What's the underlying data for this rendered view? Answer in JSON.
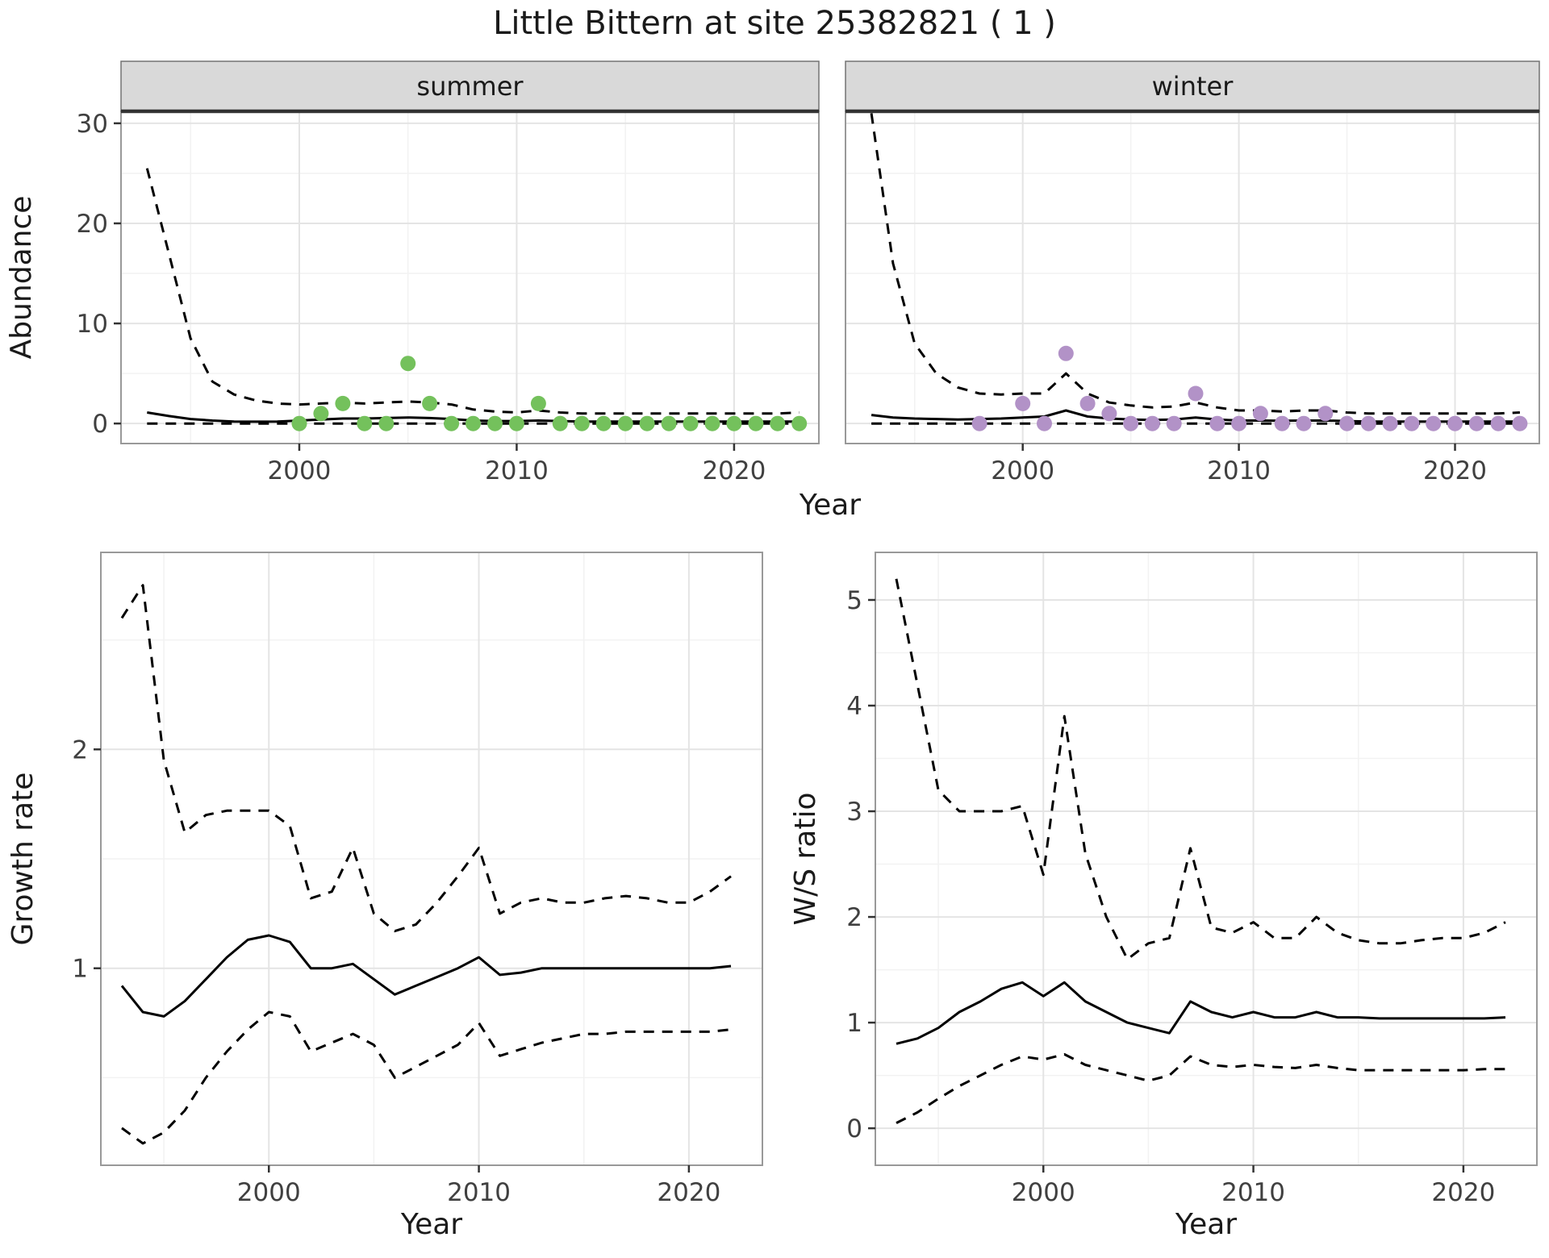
{
  "title": "Little Bittern at site 25382821 ( 1 )",
  "chart_data": [
    {
      "id": "abundance-summer",
      "type": "line+scatter",
      "facet_label": "summer",
      "xlabel": "Year",
      "ylabel": "Abundance",
      "xlim": [
        1991.8,
        2023.9
      ],
      "ylim": [
        -2.0,
        31.2
      ],
      "xticks": [
        2000,
        2010,
        2020
      ],
      "yticks": [
        0,
        10,
        20,
        30
      ],
      "grid": "on",
      "point_color": "#74C15C",
      "points": {
        "x": [
          2000,
          2001,
          2002,
          2003,
          2004,
          2005,
          2006,
          2007,
          2008,
          2009,
          2010,
          2011,
          2012,
          2013,
          2014,
          2015,
          2016,
          2017,
          2018,
          2019,
          2020,
          2021,
          2022,
          2023
        ],
        "y": [
          0,
          1,
          2,
          0,
          0,
          6,
          2,
          0,
          0,
          0,
          0,
          2,
          0,
          0,
          0,
          0,
          0,
          0,
          0,
          0,
          0,
          0,
          0,
          0
        ]
      },
      "series": [
        {
          "name": "fitted",
          "style": "solid",
          "x": [
            1993,
            1994,
            1995,
            1996,
            1997,
            1998,
            1999,
            2000,
            2001,
            2002,
            2003,
            2004,
            2005,
            2006,
            2007,
            2008,
            2009,
            2010,
            2011,
            2012,
            2013,
            2014,
            2015,
            2016,
            2017,
            2018,
            2019,
            2020,
            2021,
            2022,
            2023
          ],
          "y": [
            1.1,
            0.75,
            0.45,
            0.3,
            0.2,
            0.18,
            0.2,
            0.3,
            0.4,
            0.5,
            0.5,
            0.55,
            0.6,
            0.55,
            0.45,
            0.3,
            0.25,
            0.25,
            0.3,
            0.25,
            0.2,
            0.2,
            0.2,
            0.2,
            0.2,
            0.2,
            0.2,
            0.2,
            0.2,
            0.2,
            0.2
          ]
        },
        {
          "name": "upper-ci",
          "style": "dashed",
          "x": [
            1993,
            1994,
            1995,
            1996,
            1997,
            1998,
            1999,
            2000,
            2001,
            2002,
            2003,
            2004,
            2005,
            2006,
            2007,
            2008,
            2009,
            2010,
            2011,
            2012,
            2013,
            2014,
            2015,
            2016,
            2017,
            2018,
            2019,
            2020,
            2021,
            2022,
            2023
          ],
          "y": [
            25.5,
            17,
            8.5,
            4.2,
            2.9,
            2.3,
            2.0,
            1.9,
            2.0,
            2.1,
            2.0,
            2.1,
            2.2,
            2.1,
            1.9,
            1.4,
            1.2,
            1.1,
            1.3,
            1.1,
            1.0,
            1.0,
            1.0,
            1.0,
            1.0,
            1.0,
            1.0,
            1.0,
            1.0,
            1.0,
            1.1
          ]
        },
        {
          "name": "lower-ci",
          "style": "dashed",
          "x": [
            1993,
            1994,
            1995,
            1996,
            1997,
            1998,
            1999,
            2000,
            2001,
            2002,
            2003,
            2004,
            2005,
            2006,
            2007,
            2008,
            2009,
            2010,
            2011,
            2012,
            2013,
            2014,
            2015,
            2016,
            2017,
            2018,
            2019,
            2020,
            2021,
            2022,
            2023
          ],
          "y": [
            0,
            0,
            0,
            0,
            0,
            0,
            0,
            0,
            0,
            0,
            0,
            0,
            0,
            0,
            0,
            0,
            0,
            0,
            0,
            0,
            0,
            0,
            0,
            0,
            0,
            0,
            0,
            0,
            0,
            0,
            0
          ]
        }
      ]
    },
    {
      "id": "abundance-winter",
      "type": "line+scatter",
      "facet_label": "winter",
      "xlabel": "Year",
      "ylabel": "Abundance",
      "xlim": [
        1991.8,
        2023.9
      ],
      "ylim": [
        -2.0,
        31.2
      ],
      "xticks": [
        2000,
        2010,
        2020
      ],
      "yticks": [
        0,
        10,
        20,
        30
      ],
      "grid": "on",
      "point_color": "#B292C7",
      "points": {
        "x": [
          1998,
          2000,
          2001,
          2002,
          2003,
          2004,
          2005,
          2006,
          2007,
          2008,
          2009,
          2010,
          2011,
          2012,
          2013,
          2014,
          2015,
          2016,
          2017,
          2018,
          2019,
          2020,
          2021,
          2022,
          2023
        ],
        "y": [
          0,
          2,
          0,
          7,
          2,
          1,
          0,
          0,
          0,
          3,
          0,
          0,
          1,
          0,
          0,
          1,
          0,
          0,
          0,
          0,
          0,
          0,
          0,
          0,
          0
        ]
      },
      "series": [
        {
          "name": "fitted",
          "style": "solid",
          "x": [
            1993,
            1994,
            1995,
            1996,
            1997,
            1998,
            1999,
            2000,
            2001,
            2002,
            2003,
            2004,
            2005,
            2006,
            2007,
            2008,
            2009,
            2010,
            2011,
            2012,
            2013,
            2014,
            2015,
            2016,
            2017,
            2018,
            2019,
            2020,
            2021,
            2022,
            2023
          ],
          "y": [
            0.85,
            0.6,
            0.5,
            0.45,
            0.4,
            0.45,
            0.5,
            0.6,
            0.7,
            1.3,
            0.7,
            0.5,
            0.4,
            0.35,
            0.4,
            0.6,
            0.4,
            0.3,
            0.3,
            0.28,
            0.3,
            0.3,
            0.25,
            0.2,
            0.2,
            0.2,
            0.2,
            0.2,
            0.2,
            0.2,
            0.2
          ]
        },
        {
          "name": "upper-ci",
          "style": "dashed",
          "x": [
            1993,
            1994,
            1995,
            1996,
            1997,
            1998,
            1999,
            2000,
            2001,
            2002,
            2003,
            2004,
            2005,
            2006,
            2007,
            2008,
            2009,
            2010,
            2011,
            2012,
            2013,
            2014,
            2015,
            2016,
            2017,
            2018,
            2019,
            2020,
            2021,
            2022,
            2023
          ],
          "y": [
            31,
            16,
            8,
            5,
            3.6,
            3.0,
            2.9,
            3.0,
            3.0,
            5.0,
            3.0,
            2.1,
            1.8,
            1.6,
            1.7,
            2.1,
            1.6,
            1.3,
            1.3,
            1.2,
            1.3,
            1.3,
            1.1,
            1.0,
            1.0,
            1.0,
            1.0,
            1.0,
            1.0,
            1.0,
            1.1
          ]
        },
        {
          "name": "lower-ci",
          "style": "dashed",
          "x": [
            1993,
            1994,
            1995,
            1996,
            1997,
            1998,
            1999,
            2000,
            2001,
            2002,
            2003,
            2004,
            2005,
            2006,
            2007,
            2008,
            2009,
            2010,
            2011,
            2012,
            2013,
            2014,
            2015,
            2016,
            2017,
            2018,
            2019,
            2020,
            2021,
            2022,
            2023
          ],
          "y": [
            0,
            0,
            0,
            0,
            0,
            0,
            0,
            0,
            0,
            0,
            0,
            0,
            0,
            0,
            0,
            0,
            0,
            0,
            0,
            0,
            0,
            0,
            0,
            0,
            0,
            0,
            0,
            0,
            0,
            0,
            0
          ]
        }
      ]
    },
    {
      "id": "growth-rate",
      "type": "line",
      "xlabel": "Year",
      "ylabel": "Growth rate",
      "xlim": [
        1992,
        2023.5
      ],
      "ylim": [
        0.1,
        2.9
      ],
      "xticks": [
        2000,
        2010,
        2020
      ],
      "yticks": [
        1,
        2
      ],
      "grid": "on",
      "series": [
        {
          "name": "fitted",
          "style": "solid",
          "x": [
            1993,
            1994,
            1995,
            1996,
            1997,
            1998,
            1999,
            2000,
            2001,
            2002,
            2003,
            2004,
            2005,
            2006,
            2007,
            2008,
            2009,
            2010,
            2011,
            2012,
            2013,
            2014,
            2015,
            2016,
            2017,
            2018,
            2019,
            2020,
            2021,
            2022
          ],
          "y": [
            0.92,
            0.8,
            0.78,
            0.85,
            0.95,
            1.05,
            1.13,
            1.15,
            1.12,
            1.0,
            1.0,
            1.02,
            0.95,
            0.88,
            0.92,
            0.96,
            1.0,
            1.05,
            0.97,
            0.98,
            1.0,
            1.0,
            1.0,
            1.0,
            1.0,
            1.0,
            1.0,
            1.0,
            1.0,
            1.01
          ]
        },
        {
          "name": "upper-ci",
          "style": "dashed",
          "x": [
            1993,
            1994,
            1995,
            1996,
            1997,
            1998,
            1999,
            2000,
            2001,
            2002,
            2003,
            2004,
            2005,
            2006,
            2007,
            2008,
            2009,
            2010,
            2011,
            2012,
            2013,
            2014,
            2015,
            2016,
            2017,
            2018,
            2019,
            2020,
            2021,
            2022
          ],
          "y": [
            2.6,
            2.75,
            1.95,
            1.62,
            1.7,
            1.72,
            1.72,
            1.72,
            1.65,
            1.32,
            1.35,
            1.55,
            1.25,
            1.17,
            1.2,
            1.3,
            1.42,
            1.55,
            1.25,
            1.3,
            1.32,
            1.3,
            1.3,
            1.32,
            1.33,
            1.32,
            1.3,
            1.3,
            1.35,
            1.42
          ]
        },
        {
          "name": "lower-ci",
          "style": "dashed",
          "x": [
            1993,
            1994,
            1995,
            1996,
            1997,
            1998,
            1999,
            2000,
            2001,
            2002,
            2003,
            2004,
            2005,
            2006,
            2007,
            2008,
            2009,
            2010,
            2011,
            2012,
            2013,
            2014,
            2015,
            2016,
            2017,
            2018,
            2019,
            2020,
            2021,
            2022
          ],
          "y": [
            0.27,
            0.2,
            0.25,
            0.35,
            0.5,
            0.62,
            0.72,
            0.8,
            0.78,
            0.62,
            0.66,
            0.7,
            0.65,
            0.5,
            0.55,
            0.6,
            0.65,
            0.75,
            0.6,
            0.63,
            0.66,
            0.68,
            0.7,
            0.7,
            0.71,
            0.71,
            0.71,
            0.71,
            0.71,
            0.72
          ]
        }
      ]
    },
    {
      "id": "ws-ratio",
      "type": "line",
      "xlabel": "Year",
      "ylabel": "W/S ratio",
      "xlim": [
        1992,
        2023.5
      ],
      "ylim": [
        -0.35,
        5.45
      ],
      "xticks": [
        2000,
        2010,
        2020
      ],
      "yticks": [
        0,
        1,
        2,
        3,
        4,
        5
      ],
      "grid": "on",
      "series": [
        {
          "name": "fitted",
          "style": "solid",
          "x": [
            1993,
            1994,
            1995,
            1996,
            1997,
            1998,
            1999,
            2000,
            2001,
            2002,
            2003,
            2004,
            2005,
            2006,
            2007,
            2008,
            2009,
            2010,
            2011,
            2012,
            2013,
            2014,
            2015,
            2016,
            2017,
            2018,
            2019,
            2020,
            2021,
            2022
          ],
          "y": [
            0.8,
            0.85,
            0.95,
            1.1,
            1.2,
            1.32,
            1.38,
            1.25,
            1.38,
            1.2,
            1.1,
            1.0,
            0.95,
            0.9,
            1.2,
            1.1,
            1.05,
            1.1,
            1.05,
            1.05,
            1.1,
            1.05,
            1.05,
            1.04,
            1.04,
            1.04,
            1.04,
            1.04,
            1.04,
            1.05
          ]
        },
        {
          "name": "upper-ci",
          "style": "dashed",
          "x": [
            1993,
            1994,
            1995,
            1996,
            1997,
            1998,
            1999,
            2000,
            2001,
            2002,
            2003,
            2004,
            2005,
            2006,
            2007,
            2008,
            2009,
            2010,
            2011,
            2012,
            2013,
            2014,
            2015,
            2016,
            2017,
            2018,
            2019,
            2020,
            2021,
            2022
          ],
          "y": [
            5.2,
            4.2,
            3.2,
            3.0,
            3.0,
            3.0,
            3.05,
            2.4,
            3.9,
            2.6,
            2.0,
            1.6,
            1.75,
            1.8,
            2.65,
            1.9,
            1.85,
            1.95,
            1.8,
            1.8,
            2.0,
            1.85,
            1.78,
            1.75,
            1.75,
            1.78,
            1.8,
            1.8,
            1.85,
            1.95
          ]
        },
        {
          "name": "lower-ci",
          "style": "dashed",
          "x": [
            1993,
            1994,
            1995,
            1996,
            1997,
            1998,
            1999,
            2000,
            2001,
            2002,
            2003,
            2004,
            2005,
            2006,
            2007,
            2008,
            2009,
            2010,
            2011,
            2012,
            2013,
            2014,
            2015,
            2016,
            2017,
            2018,
            2019,
            2020,
            2021,
            2022
          ],
          "y": [
            0.05,
            0.15,
            0.28,
            0.4,
            0.5,
            0.6,
            0.68,
            0.65,
            0.7,
            0.6,
            0.55,
            0.5,
            0.45,
            0.5,
            0.68,
            0.6,
            0.58,
            0.6,
            0.58,
            0.57,
            0.6,
            0.57,
            0.55,
            0.55,
            0.55,
            0.55,
            0.55,
            0.55,
            0.56,
            0.56
          ]
        }
      ]
    }
  ]
}
